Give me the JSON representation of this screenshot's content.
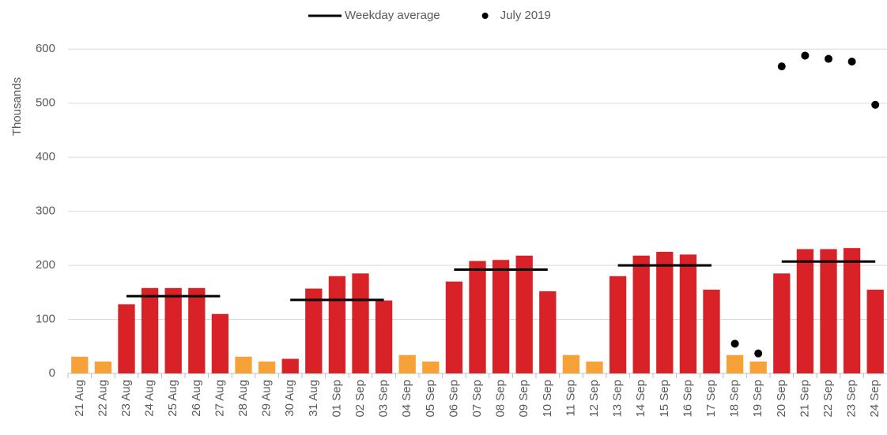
{
  "chart_data": {
    "type": "bar",
    "y_label": "Thousands",
    "categories": [
      "21 Aug",
      "22 Aug",
      "23 Aug",
      "24 Aug",
      "25 Aug",
      "26 Aug",
      "27 Aug",
      "28 Aug",
      "29 Aug",
      "30 Aug",
      "31 Aug",
      "01 Sep",
      "02 Sep",
      "03 Sep",
      "04 Sep",
      "05 Sep",
      "06 Sep",
      "07 Sep",
      "08 Sep",
      "09 Sep",
      "10 Sep",
      "11 Sep",
      "12 Sep",
      "13 Sep",
      "14 Sep",
      "15 Sep",
      "16 Sep",
      "17 Sep",
      "18 Sep",
      "19 Sep",
      "20 Sep",
      "21 Sep",
      "22 Sep",
      "23 Sep",
      "24 Sep"
    ],
    "values": [
      31,
      22,
      128,
      158,
      158,
      158,
      110,
      31,
      22,
      27,
      157,
      180,
      185,
      135,
      34,
      22,
      170,
      208,
      210,
      218,
      152,
      34,
      22,
      180,
      218,
      225,
      220,
      155,
      34,
      22,
      185,
      230,
      230,
      232,
      155
    ],
    "colors": [
      "#f7a239",
      "#f7a239",
      "#d92228",
      "#d92228",
      "#d92228",
      "#d92228",
      "#d92228",
      "#f7a239",
      "#f7a239",
      "#d92228",
      "#d92228",
      "#d92228",
      "#d92228",
      "#d92228",
      "#f7a239",
      "#f7a239",
      "#d92228",
      "#d92228",
      "#d92228",
      "#d92228",
      "#d92228",
      "#f7a239",
      "#f7a239",
      "#d92228",
      "#d92228",
      "#d92228",
      "#d92228",
      "#d92228",
      "#f7a239",
      "#f7a239",
      "#d92228",
      "#d92228",
      "#d92228",
      "#d92228",
      "#d92228"
    ],
    "series": [
      {
        "name": "Weekday average",
        "type": "line",
        "color": "#000000",
        "values": [
          null,
          null,
          143,
          143,
          143,
          143,
          143,
          null,
          null,
          136,
          136,
          136,
          136,
          136,
          null,
          null,
          192,
          192,
          192,
          192,
          192,
          null,
          null,
          200,
          200,
          200,
          200,
          200,
          null,
          null,
          207,
          207,
          207,
          207,
          207
        ]
      },
      {
        "name": "July 2019",
        "type": "scatter",
        "color": "#000000",
        "values": [
          null,
          null,
          null,
          null,
          null,
          null,
          null,
          null,
          null,
          null,
          null,
          null,
          null,
          null,
          null,
          null,
          null,
          null,
          null,
          null,
          null,
          null,
          null,
          null,
          null,
          null,
          null,
          null,
          55,
          37,
          568,
          588,
          582,
          577,
          497
        ]
      }
    ],
    "ylim": [
      0,
      650
    ],
    "yticks": [
      0,
      100,
      200,
      300,
      400,
      500,
      600
    ],
    "grid": true,
    "legend": "top"
  }
}
